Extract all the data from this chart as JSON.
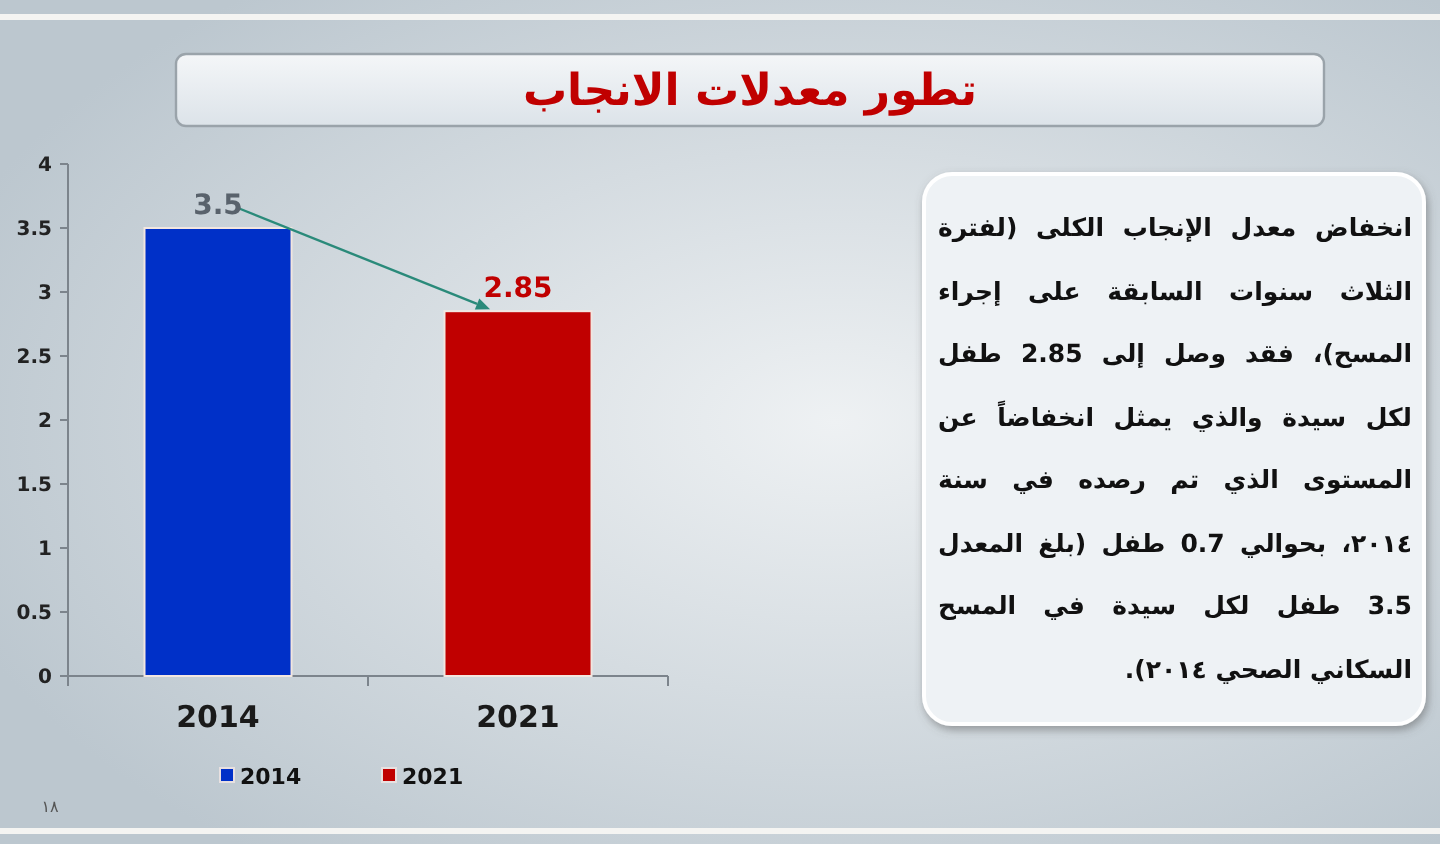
{
  "chart_data": {
    "type": "bar",
    "title": "تطور معدلات الانجاب",
    "categories": [
      "2014",
      "2021"
    ],
    "stacked": true,
    "series": [
      {
        "name": "2014",
        "color": "#0030c8",
        "values": [
          3.5,
          null
        ]
      },
      {
        "name": "2021",
        "color": "#c00000",
        "values": [
          null,
          2.85
        ]
      }
    ],
    "ylim": [
      0,
      4
    ],
    "yticks": [
      0,
      0.5,
      1,
      1.5,
      2,
      2.5,
      3,
      3.5,
      4
    ],
    "legend": "bottom",
    "data_labels": true,
    "annotations": [
      "انخفاض معدل الإنجاب الكلى (لفترة الثلاث سنوات السابقة على إجراء المسح)، فقد وصل إلى 2.85 طفل لكل سيدة والذي يمثل انخفاضاً عن المستوى الذي تم رصده في سنة ٢٠١٤، بحوالي 0.7 طفل (بلغ المعدل 3.5 طفل لكل سيدة في المسح السكاني الصحي ٢٠١٤).",
      "١٨"
    ]
  }
}
